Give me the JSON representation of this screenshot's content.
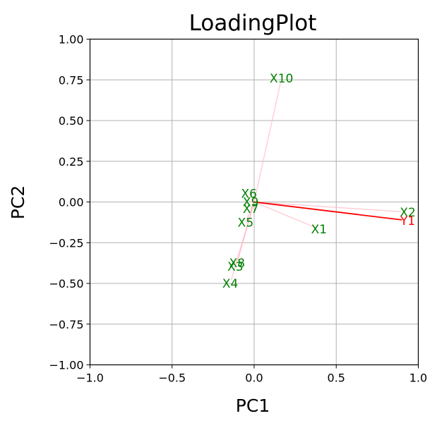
{
  "chart_data": {
    "type": "scatter",
    "title": "LoadingPlot",
    "xlabel": "PC1",
    "ylabel": "PC2",
    "xlim": [
      -1.0,
      1.0
    ],
    "ylim": [
      -1.0,
      1.0
    ],
    "grid": true,
    "x_ticks": [
      "−1.0",
      "−0.5",
      "0.0",
      "0.5",
      "1.0"
    ],
    "y_ticks": [
      "−1.00",
      "−0.75",
      "−0.50",
      "−0.25",
      "0.00",
      "0.25",
      "0.50",
      "0.75",
      "1.00"
    ],
    "x_tick_values": [
      -1.0,
      -0.5,
      0.0,
      0.5,
      1.0
    ],
    "y_tick_values": [
      -1.0,
      -0.75,
      -0.5,
      -0.25,
      0.0,
      0.25,
      0.5,
      0.75,
      1.0
    ],
    "colors": {
      "x_vectors": "#ffc0cb",
      "x_labels": "#008000",
      "y_vectors": "#ff0000",
      "y_labels": "#ff0000",
      "grid": "#b0b0b0"
    },
    "x_loadings": [
      {
        "name": "X1",
        "x": 0.38,
        "y": -0.16
      },
      {
        "name": "X2",
        "x": 0.9,
        "y": -0.06
      },
      {
        "name": "X3",
        "x": -0.11,
        "y": -0.38
      },
      {
        "name": "X4",
        "x": -0.14,
        "y": -0.48
      },
      {
        "name": "X5",
        "x": -0.05,
        "y": -0.12
      },
      {
        "name": "X6",
        "x": -0.03,
        "y": 0.05
      },
      {
        "name": "X7",
        "x": -0.02,
        "y": -0.04
      },
      {
        "name": "X8",
        "x": -0.1,
        "y": -0.36
      },
      {
        "name": "X9",
        "x": -0.02,
        "y": 0.0
      },
      {
        "name": "X10",
        "x": 0.16,
        "y": 0.73
      }
    ],
    "y_loadings": [
      {
        "name": "Y1",
        "x": 0.9,
        "y": -0.11
      }
    ]
  }
}
